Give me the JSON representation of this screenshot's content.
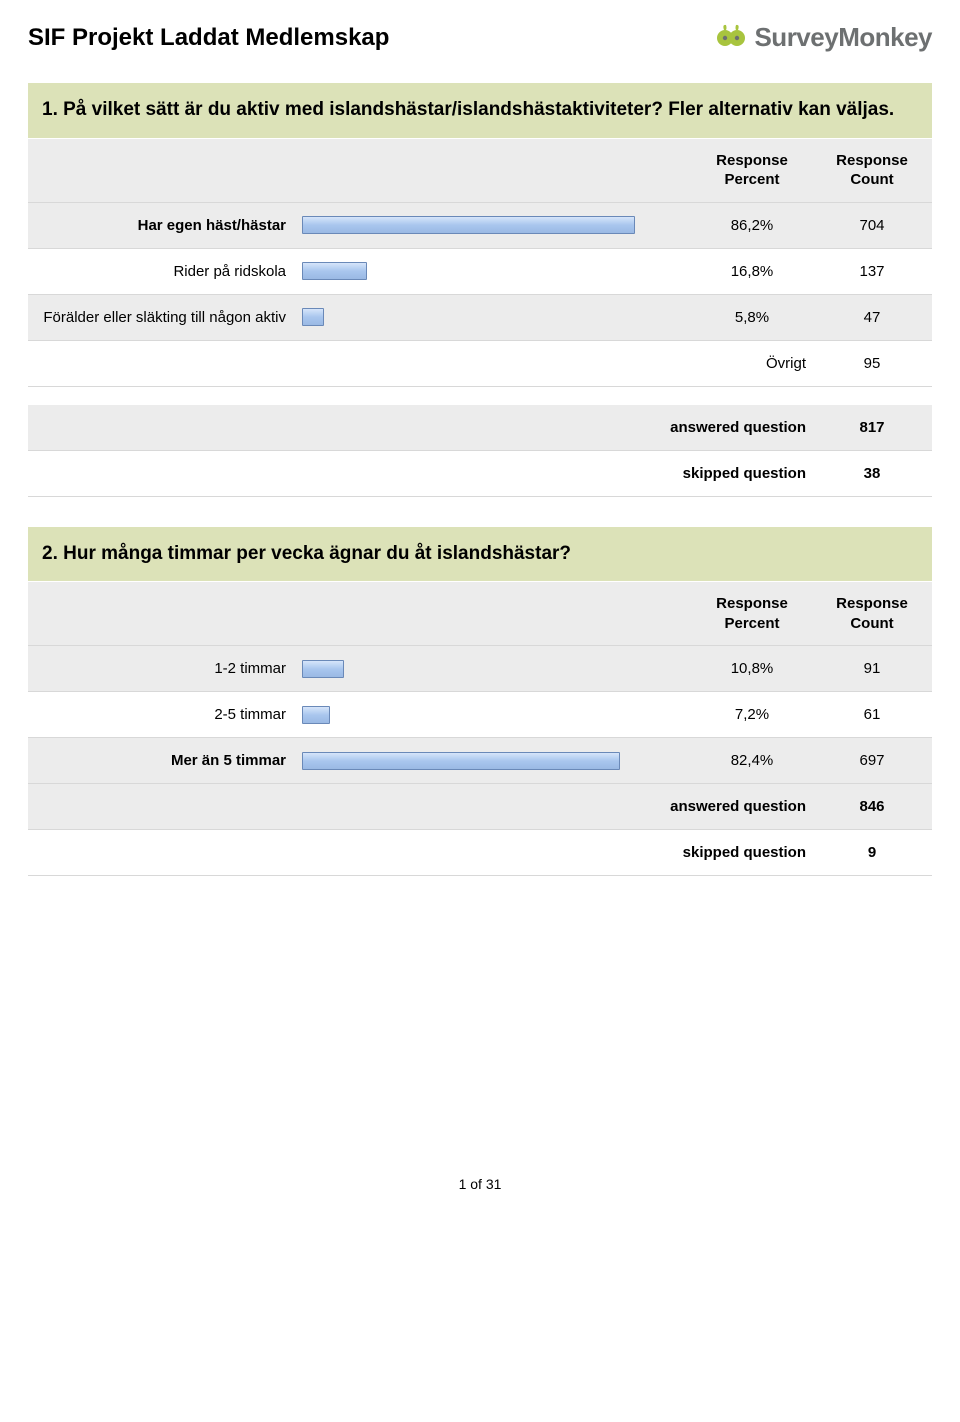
{
  "page_title": "SIF Projekt Laddat Medlemskap",
  "logo_text": "SurveyMonkey",
  "headers": {
    "percent": "Response Percent",
    "count": "Response Count"
  },
  "labels": {
    "other": "Övrigt",
    "answered": "answered question",
    "skipped": "skipped question"
  },
  "footer": "1 of 31",
  "styling": {
    "question_bg": "#dce2b8",
    "row_odd_bg": "#ececec",
    "row_even_bg": "#ffffff",
    "bar_border": "#6a89b8",
    "bar_gradient_top": "#d6e5fa",
    "bar_gradient_bottom": "#9ab9e4",
    "logo_icon_green": "#a8c43e",
    "logo_text_color": "#6d7071",
    "title_fontsize": 24,
    "question_fontsize": 19,
    "row_fontsize": 15
  },
  "questions": [
    {
      "title": "1. På vilket sätt är du aktiv med islandshästar/islandshästaktiviteter? Fler alternativ kan väljas.",
      "rows": [
        {
          "label": "Har egen häst/hästar",
          "label_bold": true,
          "percent_text": "86,2%",
          "percent_value": 86.2,
          "count": "704",
          "bg": "odd"
        },
        {
          "label": "Rider på ridskola",
          "label_bold": false,
          "percent_text": "16,8%",
          "percent_value": 16.8,
          "count": "137",
          "bg": "even"
        },
        {
          "label": "Förälder eller släkting till någon aktiv",
          "label_bold": false,
          "percent_text": "5,8%",
          "percent_value": 5.8,
          "count": "47",
          "bg": "odd"
        }
      ],
      "other_count": "95",
      "answered": "817",
      "skipped": "38"
    },
    {
      "title": "2. Hur många timmar per vecka ägnar du åt islandshästar?",
      "rows": [
        {
          "label": "1-2 timmar",
          "label_bold": false,
          "percent_text": "10,8%",
          "percent_value": 10.8,
          "count": "91",
          "bg": "odd"
        },
        {
          "label": "2-5 timmar",
          "label_bold": false,
          "percent_text": "7,2%",
          "percent_value": 7.2,
          "count": "61",
          "bg": "even"
        },
        {
          "label": "Mer än 5 timmar",
          "label_bold": true,
          "percent_text": "82,4%",
          "percent_value": 82.4,
          "count": "697",
          "bg": "odd"
        }
      ],
      "answered": "846",
      "skipped": "9"
    }
  ]
}
